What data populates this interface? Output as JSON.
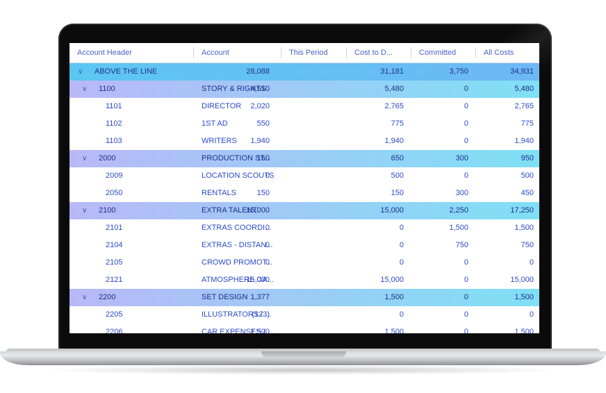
{
  "columns": [
    "Account Header",
    "Account",
    "This Period",
    "Cost to D...",
    "Committed",
    "All Costs"
  ],
  "rows": [
    {
      "kind": "top",
      "header": "ABOVE THE LINE",
      "account": "",
      "this_period": "28,088",
      "cost_to_date": "31,181",
      "committed": "3,750",
      "all_costs": "34,931"
    },
    {
      "kind": "group",
      "header": "1100",
      "account": "STORY & RIGHTS",
      "this_period": "4,510",
      "cost_to_date": "5,480",
      "committed": "0",
      "all_costs": "5,480"
    },
    {
      "kind": "detail",
      "header": "1101",
      "account": "DIRECTOR",
      "this_period": "2,020",
      "cost_to_date": "2,765",
      "committed": "0",
      "all_costs": "2,765"
    },
    {
      "kind": "detail",
      "header": "1102",
      "account": "1ST AD",
      "this_period": "550",
      "cost_to_date": "775",
      "committed": "0",
      "all_costs": "775"
    },
    {
      "kind": "detail",
      "header": "1103",
      "account": "WRITERS",
      "this_period": "1,940",
      "cost_to_date": "1,940",
      "committed": "0",
      "all_costs": "1,940"
    },
    {
      "kind": "group",
      "header": "2000",
      "account": "PRODUCTION ST...",
      "this_period": "150",
      "cost_to_date": "650",
      "committed": "300",
      "all_costs": "950"
    },
    {
      "kind": "detail",
      "header": "2009",
      "account": "LOCATION SCOUTS",
      "this_period": "0",
      "cost_to_date": "500",
      "committed": "0",
      "all_costs": "500"
    },
    {
      "kind": "detail",
      "header": "2050",
      "account": "RENTALS",
      "this_period": "150",
      "cost_to_date": "150",
      "committed": "300",
      "all_costs": "450"
    },
    {
      "kind": "group",
      "header": "2100",
      "account": "EXTRA TALENT",
      "this_period": "15,000",
      "cost_to_date": "15,000",
      "committed": "2,250",
      "all_costs": "17,250"
    },
    {
      "kind": "detail",
      "header": "2101",
      "account": "EXTRAS COORDI...",
      "this_period": "0",
      "cost_to_date": "0",
      "committed": "1,500",
      "all_costs": "1,500"
    },
    {
      "kind": "detail",
      "header": "2104",
      "account": "EXTRAS - DISTAN...",
      "this_period": "0",
      "cost_to_date": "0",
      "committed": "750",
      "all_costs": "750"
    },
    {
      "kind": "detail",
      "header": "2105",
      "account": "CROWD PROMOT...",
      "this_period": "0",
      "cost_to_date": "0",
      "committed": "0",
      "all_costs": "0"
    },
    {
      "kind": "detail",
      "header": "2121",
      "account": "ATMOSPHERE CA...",
      "this_period": "15,000",
      "cost_to_date": "15,000",
      "committed": "0",
      "all_costs": "15,000"
    },
    {
      "kind": "group",
      "header": "2200",
      "account": "SET DESIGN",
      "this_period": "1,377",
      "cost_to_date": "1,500",
      "committed": "0",
      "all_costs": "1,500"
    },
    {
      "kind": "detail",
      "header": "2205",
      "account": "ILLUSTRATORS / ...",
      "this_period": "(123)",
      "cost_to_date": "0",
      "committed": "0",
      "all_costs": "0"
    },
    {
      "kind": "detail",
      "header": "2206",
      "account": "CAR EXPENSES / ...",
      "this_period": "1,500",
      "cost_to_date": "1,500",
      "committed": "0",
      "all_costs": "1,500"
    }
  ],
  "colors": {
    "top_row_gradient": [
      "#5cc6f2",
      "#6db8f5"
    ],
    "group_row_gradient": [
      "#b9b8f7",
      "#7fe0f5"
    ],
    "header_text": "#4a63c7",
    "detail_text": "#2a49c8"
  },
  "icons": {
    "expand": "chevron-down-icon"
  }
}
